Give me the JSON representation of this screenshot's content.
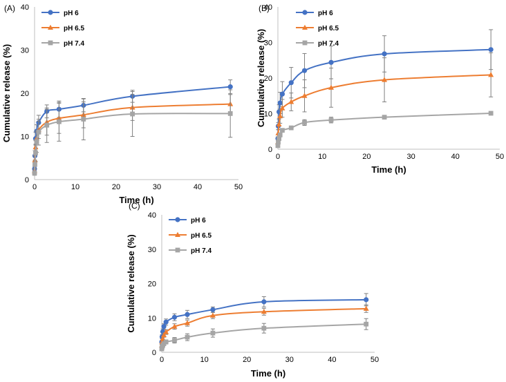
{
  "chart_data": [
    {
      "type": "line",
      "panel_label": "(A)",
      "xlabel": "Time (h)",
      "ylabel": "Cumulative release (%)",
      "xlim": [
        0,
        50
      ],
      "ylim": [
        0,
        40
      ],
      "xticks": [
        "0",
        "10",
        "20",
        "30",
        "40",
        "50"
      ],
      "yticks": [
        "0",
        "10",
        "20",
        "30",
        "40"
      ],
      "grid": false,
      "legend_position": "top-left",
      "x": [
        0,
        0.08,
        0.25,
        0.5,
        1,
        3,
        6,
        12,
        24,
        48
      ],
      "series": [
        {
          "name": "pH 6",
          "color": "#4472C4",
          "marker": "circle",
          "values": [
            2.5,
            5.5,
            9.5,
            11.2,
            13.2,
            15.8,
            16.3,
            17.2,
            19.3,
            21.5
          ],
          "errors": [
            0.5,
            1.2,
            1.5,
            1.5,
            1.7,
            1.5,
            1.9,
            1.5,
            1.4,
            1.6
          ]
        },
        {
          "name": "pH 6.5",
          "color": "#ED7D31",
          "marker": "triangle",
          "values": [
            2.0,
            4.5,
            7.5,
            9.5,
            11.5,
            13.3,
            14.2,
            15.0,
            16.7,
            17.5
          ],
          "errors": [
            0.5,
            1.0,
            1.5,
            1.5,
            2.0,
            3.0,
            3.5,
            3.0,
            3.0,
            2.2
          ]
        },
        {
          "name": "pH 7.4",
          "color": "#A5A5A5",
          "marker": "square",
          "values": [
            1.5,
            3.5,
            6.2,
            8.8,
            11.0,
            12.6,
            13.4,
            14.0,
            15.2,
            15.3
          ],
          "errors": [
            0.5,
            1.0,
            2.0,
            2.5,
            3.0,
            4.0,
            4.5,
            4.8,
            5.2,
            5.5
          ]
        }
      ]
    },
    {
      "type": "line",
      "panel_label": "(B)",
      "xlabel": "Time (h)",
      "ylabel": "Cumulative release (%)",
      "xlim": [
        0,
        50
      ],
      "ylim": [
        0,
        40
      ],
      "xticks": [
        "0",
        "10",
        "20",
        "30",
        "40",
        "50"
      ],
      "yticks": [
        "0",
        "10",
        "20",
        "30",
        "40"
      ],
      "grid": false,
      "legend_position": "top-left",
      "x": [
        0,
        0.08,
        0.25,
        0.5,
        1,
        3,
        6,
        12,
        24,
        48
      ],
      "series": [
        {
          "name": "pH 6",
          "color": "#4472C4",
          "marker": "circle",
          "values": [
            3.0,
            6.5,
            10.5,
            13.0,
            15.5,
            18.7,
            22.1,
            24.4,
            26.8,
            28.0
          ],
          "errors": [
            0.5,
            1.0,
            2.0,
            3.0,
            3.5,
            4.3,
            4.8,
            4.6,
            5.1,
            5.6
          ]
        },
        {
          "name": "pH 6.5",
          "color": "#ED7D31",
          "marker": "triangle",
          "values": [
            2.0,
            4.5,
            7.0,
            9.3,
            11.5,
            13.3,
            15.0,
            17.3,
            19.5,
            20.9
          ],
          "errors": [
            0.5,
            1.0,
            1.5,
            2.0,
            2.5,
            2.5,
            4.5,
            5.5,
            6.2,
            6.2
          ]
        },
        {
          "name": "pH 7.4",
          "color": "#A5A5A5",
          "marker": "square",
          "values": [
            1.0,
            2.0,
            3.0,
            4.0,
            5.3,
            6.0,
            7.5,
            8.2,
            9.0,
            10.1
          ],
          "errors": [
            0.2,
            0.3,
            0.4,
            0.4,
            0.5,
            0.5,
            0.8,
            0.8,
            0.4,
            0.4
          ]
        }
      ]
    },
    {
      "type": "line",
      "panel_label": "(C)",
      "xlabel": "Time (h)",
      "ylabel": "Cumulative release (%)",
      "xlim": [
        0,
        50
      ],
      "ylim": [
        0,
        40
      ],
      "xticks": [
        "0",
        "10",
        "20",
        "30",
        "40",
        "50"
      ],
      "yticks": [
        "0",
        "10",
        "20",
        "30",
        "40"
      ],
      "grid": false,
      "legend_position": "top-left",
      "x": [
        0,
        0.08,
        0.25,
        0.5,
        1,
        3,
        6,
        12,
        24,
        48
      ],
      "series": [
        {
          "name": "pH 6",
          "color": "#4472C4",
          "marker": "circle",
          "values": [
            3.0,
            4.5,
            6.0,
            7.5,
            8.8,
            10.2,
            11.0,
            12.4,
            14.7,
            15.3
          ],
          "errors": [
            0.4,
            0.6,
            0.8,
            0.8,
            0.9,
            1.0,
            1.2,
            0.8,
            1.5,
            1.8
          ]
        },
        {
          "name": "pH 6.5",
          "color": "#ED7D31",
          "marker": "triangle",
          "values": [
            2.0,
            3.0,
            4.0,
            5.0,
            5.9,
            7.5,
            8.5,
            10.7,
            11.8,
            12.7
          ],
          "errors": [
            0.3,
            0.5,
            0.6,
            0.6,
            0.7,
            0.8,
            0.9,
            0.9,
            1.0,
            1.1
          ]
        },
        {
          "name": "pH 7.4",
          "color": "#A5A5A5",
          "marker": "square",
          "values": [
            1.0,
            1.5,
            2.0,
            2.5,
            3.0,
            3.5,
            4.4,
            5.6,
            7.0,
            8.2
          ],
          "errors": [
            0.3,
            0.4,
            0.4,
            0.5,
            0.6,
            0.8,
            1.0,
            1.2,
            1.4,
            1.6
          ]
        }
      ]
    }
  ]
}
